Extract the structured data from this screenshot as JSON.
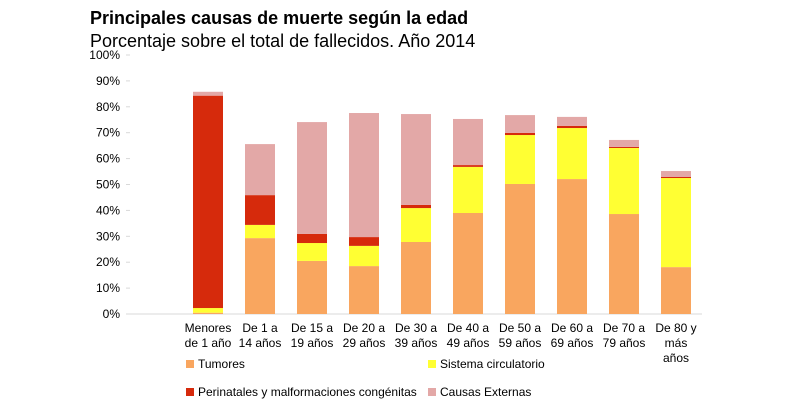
{
  "chart_data": {
    "type": "stacked_bar",
    "title": "Principales causas de muerte según la edad",
    "subtitle": "Porcentaje sobre el total de fallecidos. Año 2014",
    "categories": [
      null,
      [
        "Menores",
        "de 1 año"
      ],
      [
        "De 1 a",
        "14 años"
      ],
      [
        "De 15 a",
        "19 años"
      ],
      [
        "De 20 a",
        "29 años"
      ],
      [
        "De 30 a",
        "39 años"
      ],
      [
        "De 40 a",
        "49 años"
      ],
      [
        "De 50 a",
        "59 años"
      ],
      [
        "De 60 a",
        "69 años"
      ],
      [
        "De 70 a",
        "79 años"
      ],
      [
        "De 80 y",
        "más",
        "años"
      ]
    ],
    "series": [
      {
        "name": "Tumores",
        "color": "#f9a65f",
        "values": [
          null,
          0.5,
          29.3,
          20.5,
          18.5,
          27.8,
          39.0,
          50.2,
          52.1,
          38.6,
          18.1
        ]
      },
      {
        "name": "Sistema circulatorio",
        "color": "#ffff33",
        "values": [
          null,
          1.8,
          5.1,
          6.9,
          7.8,
          13.1,
          17.8,
          18.9,
          19.7,
          25.5,
          34.4
        ]
      },
      {
        "name": "Perinatales y malformaciones congénitas",
        "color": "#d62a0c",
        "values": [
          null,
          82.0,
          11.5,
          3.5,
          3.4,
          1.2,
          0.7,
          0.8,
          0.8,
          0.4,
          0.4
        ]
      },
      {
        "name": "Causas Externas",
        "color": "#e3a8a7",
        "values": [
          null,
          1.5,
          19.7,
          43.2,
          47.9,
          35.1,
          17.8,
          6.9,
          3.5,
          2.7,
          2.3
        ]
      }
    ],
    "ylim": [
      0,
      100
    ],
    "yticks": [
      {
        "value": 0,
        "label": "0%"
      },
      {
        "value": 10,
        "label": "10%"
      },
      {
        "value": 20,
        "label": "20%"
      },
      {
        "value": 30,
        "label": "30%"
      },
      {
        "value": 40,
        "label": "40%"
      },
      {
        "value": 50,
        "label": "50%"
      },
      {
        "value": 60,
        "label": "60%"
      },
      {
        "value": 70,
        "label": "70%"
      },
      {
        "value": 80,
        "label": "80%"
      },
      {
        "value": 90,
        "label": "90%"
      },
      {
        "value": 100,
        "label": "100%"
      }
    ],
    "grid": false
  }
}
